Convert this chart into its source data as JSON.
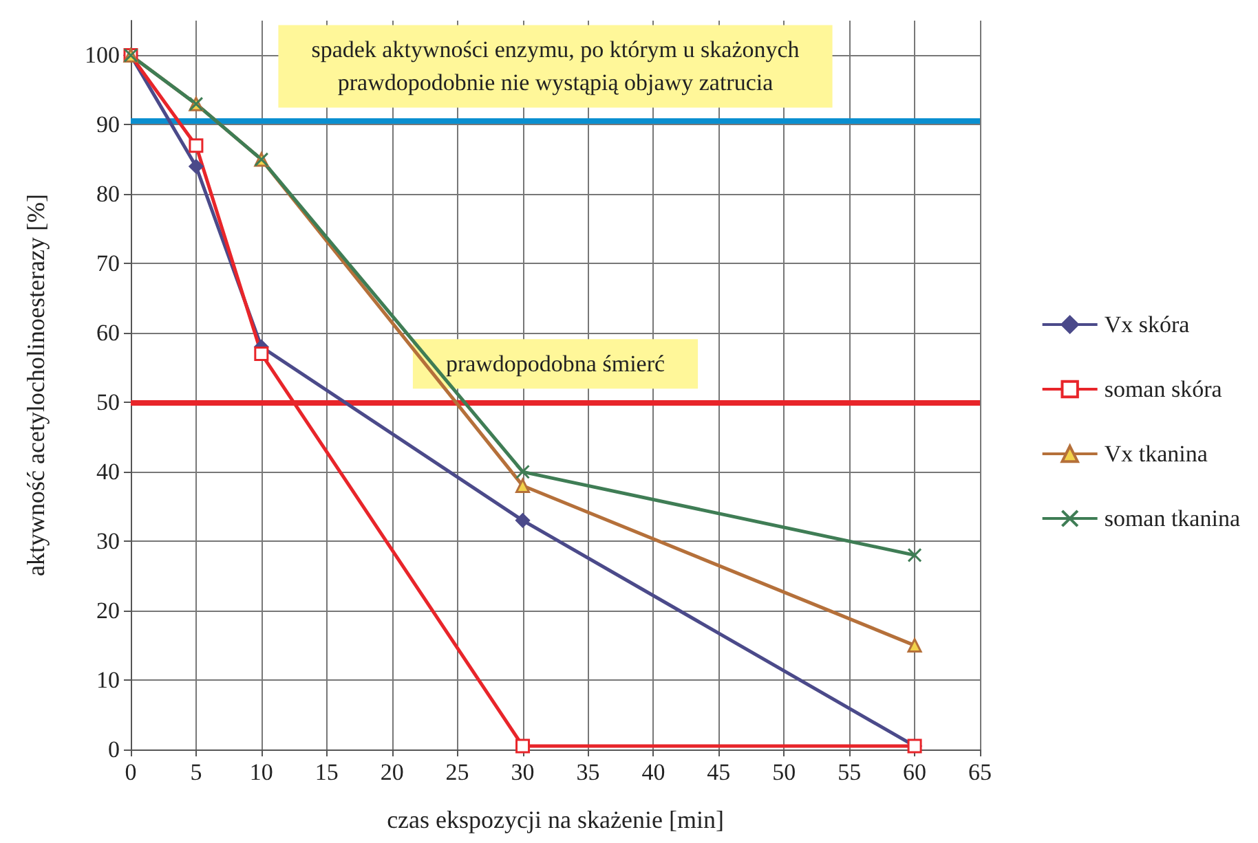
{
  "chart_data": {
    "type": "line",
    "xlabel": "czas ekspozycji na skażenie [min]",
    "ylabel": "aktywność acetylocholinoesterazy [%]",
    "x": [
      0,
      5,
      10,
      30,
      60
    ],
    "xlim": [
      0,
      65
    ],
    "xticks": [
      0,
      5,
      10,
      15,
      20,
      25,
      30,
      35,
      40,
      45,
      50,
      55,
      60,
      65
    ],
    "ylim": [
      0,
      105
    ],
    "yticks": [
      0,
      10,
      20,
      30,
      40,
      50,
      60,
      70,
      80,
      90,
      100
    ],
    "grid": true,
    "legend": "right",
    "series": [
      {
        "name": "Vx skóra",
        "color": "#4b4a8a",
        "marker": "diamond",
        "values": [
          100,
          84,
          58,
          33,
          0.5
        ]
      },
      {
        "name": "soman skóra",
        "color": "#e8252a",
        "marker": "square",
        "values": [
          100,
          87,
          57,
          0.5,
          0.5
        ]
      },
      {
        "name": "Vx tkanina",
        "color": "#b5703a",
        "marker": "triangle",
        "values": [
          100,
          93,
          85,
          38,
          15
        ]
      },
      {
        "name": "soman tkanina",
        "color": "#3f7d55",
        "marker": "cross",
        "values": [
          100,
          93,
          85,
          40,
          28
        ]
      }
    ],
    "ref_lines": [
      {
        "axis": "y",
        "value": 90.5,
        "color": "#0a8fd0",
        "label": "spadek aktywności enzymu, po którym u skażonych\nprawdopodobnie nie wystąpią objawy zatrucia"
      },
      {
        "axis": "y",
        "value": 50,
        "color": "#e8252a",
        "label": "prawdopodobna śmierć"
      }
    ]
  }
}
